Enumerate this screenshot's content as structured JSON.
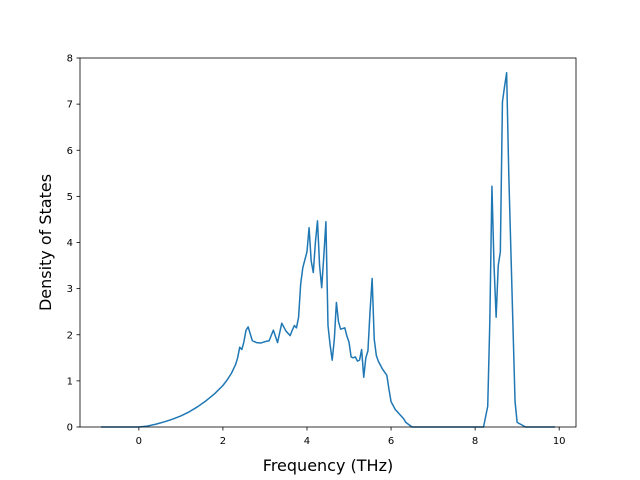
{
  "chart_data": {
    "type": "line",
    "title": "",
    "xlabel": "Frequency (THz)",
    "ylabel": "Density of States",
    "xlim": [
      -1.4,
      10.4
    ],
    "ylim": [
      0,
      8
    ],
    "xticks": [
      0,
      2,
      4,
      6,
      8,
      10
    ],
    "yticks": [
      0,
      1,
      2,
      3,
      4,
      5,
      6,
      7,
      8
    ],
    "grid": false,
    "colors": {
      "line": "#1f77b4",
      "axes": "#000000"
    },
    "series": [
      {
        "x": [
          -0.9,
          -0.5,
          0.0,
          0.2,
          0.4,
          0.6,
          0.8,
          1.0,
          1.2,
          1.4,
          1.6,
          1.8,
          2.0,
          2.1,
          2.2,
          2.3,
          2.35,
          2.4,
          2.45,
          2.5,
          2.55,
          2.6,
          2.7,
          2.8,
          2.9,
          3.0,
          3.1,
          3.2,
          3.3,
          3.4,
          3.5,
          3.6,
          3.65,
          3.7,
          3.75,
          3.8,
          3.85,
          3.9,
          4.0,
          4.05,
          4.1,
          4.15,
          4.2,
          4.25,
          4.3,
          4.35,
          4.4,
          4.45,
          4.5,
          4.55,
          4.6,
          4.65,
          4.7,
          4.75,
          4.8,
          4.9,
          4.95,
          5.0,
          5.05,
          5.1,
          5.15,
          5.2,
          5.25,
          5.3,
          5.35,
          5.4,
          5.45,
          5.5,
          5.55,
          5.6,
          5.65,
          5.7,
          5.8,
          5.9,
          5.95,
          6.0,
          6.1,
          6.2,
          6.3,
          6.35,
          6.5,
          7.0,
          7.5,
          8.0,
          8.2,
          8.3,
          8.35,
          8.4,
          8.45,
          8.5,
          8.55,
          8.6,
          8.65,
          8.7,
          8.75,
          8.8,
          8.9,
          8.95,
          9.0,
          9.2,
          9.5,
          9.9
        ],
        "y": [
          0,
          0,
          0,
          0.02,
          0.06,
          0.11,
          0.17,
          0.24,
          0.33,
          0.44,
          0.57,
          0.72,
          0.9,
          1.02,
          1.16,
          1.35,
          1.5,
          1.73,
          1.68,
          1.85,
          2.1,
          2.17,
          1.87,
          1.83,
          1.82,
          1.85,
          1.87,
          2.1,
          1.83,
          2.25,
          2.08,
          1.98,
          2.1,
          2.2,
          2.15,
          2.38,
          3.1,
          3.45,
          3.8,
          4.32,
          3.6,
          3.35,
          4.0,
          4.47,
          3.5,
          3.02,
          3.7,
          4.45,
          2.2,
          1.78,
          1.45,
          1.9,
          2.7,
          2.28,
          2.12,
          2.15,
          1.97,
          1.84,
          1.52,
          1.5,
          1.52,
          1.43,
          1.45,
          1.68,
          1.08,
          1.5,
          1.65,
          2.5,
          3.22,
          1.9,
          1.55,
          1.42,
          1.25,
          1.12,
          0.82,
          0.55,
          0.38,
          0.28,
          0.18,
          0.1,
          0,
          0,
          0,
          0,
          0,
          0.45,
          2.3,
          5.22,
          3.5,
          2.38,
          3.5,
          3.8,
          7.05,
          7.38,
          7.68,
          5.5,
          2.2,
          0.55,
          0.1,
          0,
          0,
          0
        ]
      }
    ]
  }
}
